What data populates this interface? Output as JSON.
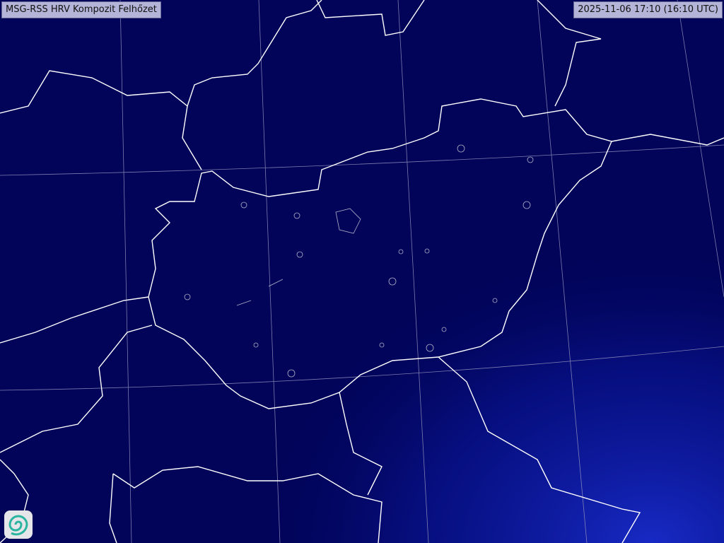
{
  "title": "MSG-RSS HRV Kompozit Felhőzet",
  "timestamp": "2025-11-06 17:10 (16:10 UTC)",
  "logo": {
    "icon": "swirl-logo-icon",
    "colors": [
      "#2bb5a0",
      "#3a8fd0"
    ]
  },
  "colors": {
    "background": "#02045a",
    "cloud_tint": "#1a2ed0",
    "borders": "#ffffff",
    "graticule": "#9a9ac0",
    "lakes": "#b0b0c8"
  }
}
